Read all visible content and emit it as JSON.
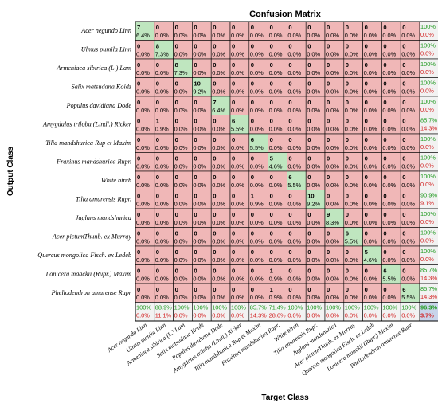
{
  "chart_data": {
    "type": "heatmap",
    "title": "Confusion Matrix",
    "xlabel": "Target Class",
    "ylabel": "Output Class",
    "classes": [
      "Acer negundo Linn",
      "Ulmus pumila Linn",
      "Armeniaca sibirica (L.) Lam",
      "Salix matsudana Koidz",
      "Populus davidiana Dode",
      "Amygdalus triloba (Lindl.) Ricker",
      "Tilia mandshurica Rup et Maxim",
      "Fraxinus mandshurica Rupr.",
      "White birch",
      "Tilia amurensis Rupr.",
      "Juglans mandshurica",
      "Acer pictumThunb. ex Murray",
      "Quercus mongolica Fisch. ex Ledeb",
      "Lonicera maackii (Rupr.) Maxim",
      "Phellodendron amurense Rupr"
    ],
    "counts": [
      [
        7,
        0,
        0,
        0,
        0,
        0,
        0,
        0,
        0,
        0,
        0,
        0,
        0,
        0,
        0
      ],
      [
        0,
        8,
        0,
        0,
        0,
        0,
        0,
        0,
        0,
        0,
        0,
        0,
        0,
        0,
        0
      ],
      [
        0,
        0,
        8,
        0,
        0,
        0,
        0,
        0,
        0,
        0,
        0,
        0,
        0,
        0,
        0
      ],
      [
        0,
        0,
        0,
        10,
        0,
        0,
        0,
        0,
        0,
        0,
        0,
        0,
        0,
        0,
        0
      ],
      [
        0,
        0,
        0,
        0,
        7,
        0,
        0,
        0,
        0,
        0,
        0,
        0,
        0,
        0,
        0
      ],
      [
        0,
        1,
        0,
        0,
        0,
        6,
        0,
        0,
        0,
        0,
        0,
        0,
        0,
        0,
        0
      ],
      [
        0,
        0,
        0,
        0,
        0,
        0,
        6,
        0,
        0,
        0,
        0,
        0,
        0,
        0,
        0
      ],
      [
        0,
        0,
        0,
        0,
        0,
        0,
        0,
        5,
        0,
        0,
        0,
        0,
        0,
        0,
        0
      ],
      [
        0,
        0,
        0,
        0,
        0,
        0,
        0,
        0,
        6,
        0,
        0,
        0,
        0,
        0,
        0
      ],
      [
        0,
        0,
        0,
        0,
        0,
        0,
        1,
        0,
        0,
        10,
        0,
        0,
        0,
        0,
        0
      ],
      [
        0,
        0,
        0,
        0,
        0,
        0,
        0,
        0,
        0,
        0,
        9,
        0,
        0,
        0,
        0
      ],
      [
        0,
        0,
        0,
        0,
        0,
        0,
        0,
        0,
        0,
        0,
        0,
        6,
        0,
        0,
        0
      ],
      [
        0,
        0,
        0,
        0,
        0,
        0,
        0,
        0,
        0,
        0,
        0,
        0,
        5,
        0,
        0
      ],
      [
        0,
        0,
        0,
        0,
        0,
        0,
        0,
        1,
        0,
        0,
        0,
        0,
        0,
        6,
        0
      ],
      [
        0,
        0,
        0,
        0,
        0,
        0,
        0,
        1,
        0,
        0,
        0,
        0,
        0,
        0,
        6
      ]
    ],
    "percents": [
      [
        "6.4%",
        "0.0%",
        "0.0%",
        "0.0%",
        "0.0%",
        "0.0%",
        "0.0%",
        "0.0%",
        "0.0%",
        "0.0%",
        "0.0%",
        "0.0%",
        "0.0%",
        "0.0%",
        "0.0%"
      ],
      [
        "0.0%",
        "7.3%",
        "0.0%",
        "0.0%",
        "0.0%",
        "0.0%",
        "0.0%",
        "0.0%",
        "0.0%",
        "0.0%",
        "0.0%",
        "0.0%",
        "0.0%",
        "0.0%",
        "0.0%"
      ],
      [
        "0.0%",
        "0.0%",
        "7.3%",
        "0.0%",
        "0.0%",
        "0.0%",
        "0.0%",
        "0.0%",
        "0.0%",
        "0.0%",
        "0.0%",
        "0.0%",
        "0.0%",
        "0.0%",
        "0.0%"
      ],
      [
        "0.0%",
        "0.0%",
        "0.0%",
        "9.2%",
        "0.0%",
        "0.0%",
        "0.0%",
        "0.0%",
        "0.0%",
        "0.0%",
        "0.0%",
        "0.0%",
        "0.0%",
        "0.0%",
        "0.0%"
      ],
      [
        "0.0%",
        "0.0%",
        "0.0%",
        "0.0%",
        "6.4%",
        "0.0%",
        "0.0%",
        "0.0%",
        "0.0%",
        "0.0%",
        "0.0%",
        "0.0%",
        "0.0%",
        "0.0%",
        "0.0%"
      ],
      [
        "0.0%",
        "0.9%",
        "0.0%",
        "0.0%",
        "0.0%",
        "5.5%",
        "0.0%",
        "0.0%",
        "0.0%",
        "0.0%",
        "0.0%",
        "0.0%",
        "0.0%",
        "0.0%",
        "0.0%"
      ],
      [
        "0.0%",
        "0.0%",
        "0.0%",
        "0.0%",
        "0.0%",
        "0.0%",
        "5.5%",
        "0.0%",
        "0.0%",
        "0.0%",
        "0.0%",
        "0.0%",
        "0.0%",
        "0.0%",
        "0.0%"
      ],
      [
        "0.0%",
        "0.0%",
        "0.0%",
        "0.0%",
        "0.0%",
        "0.0%",
        "0.0%",
        "4.6%",
        "0.0%",
        "0.0%",
        "0.0%",
        "0.0%",
        "0.0%",
        "0.0%",
        "0.0%"
      ],
      [
        "0.0%",
        "0.0%",
        "0.0%",
        "0.0%",
        "0.0%",
        "0.0%",
        "0.0%",
        "0.0%",
        "5.5%",
        "0.0%",
        "0.0%",
        "0.0%",
        "0.0%",
        "0.0%",
        "0.0%"
      ],
      [
        "0.0%",
        "0.0%",
        "0.0%",
        "0.0%",
        "0.0%",
        "0.0%",
        "0.9%",
        "0.0%",
        "0.0%",
        "9.2%",
        "0.0%",
        "0.0%",
        "0.0%",
        "0.0%",
        "0.0%"
      ],
      [
        "0.0%",
        "0.0%",
        "0.0%",
        "0.0%",
        "0.0%",
        "0.0%",
        "0.0%",
        "0.0%",
        "0.0%",
        "0.0%",
        "8.3%",
        "0.0%",
        "0.0%",
        "0.0%",
        "0.0%"
      ],
      [
        "0.0%",
        "0.0%",
        "0.0%",
        "0.0%",
        "0.0%",
        "0.0%",
        "0.0%",
        "0.0%",
        "0.0%",
        "0.0%",
        "0.0%",
        "5.5%",
        "0.0%",
        "0.0%",
        "0.0%"
      ],
      [
        "0.0%",
        "0.0%",
        "0.0%",
        "0.0%",
        "0.0%",
        "0.0%",
        "0.0%",
        "0.0%",
        "0.0%",
        "0.0%",
        "0.0%",
        "0.0%",
        "4.6%",
        "0.0%",
        "0.0%"
      ],
      [
        "0.0%",
        "0.0%",
        "0.0%",
        "0.0%",
        "0.0%",
        "0.0%",
        "0.0%",
        "0.9%",
        "0.0%",
        "0.0%",
        "0.0%",
        "0.0%",
        "0.0%",
        "5.5%",
        "0.0%"
      ],
      [
        "0.0%",
        "0.0%",
        "0.0%",
        "0.0%",
        "0.0%",
        "0.0%",
        "0.0%",
        "0.9%",
        "0.0%",
        "0.0%",
        "0.0%",
        "0.0%",
        "0.0%",
        "0.0%",
        "5.5%"
      ]
    ],
    "row_summary": [
      [
        "100%",
        "0.0%"
      ],
      [
        "100%",
        "0.0%"
      ],
      [
        "100%",
        "0.0%"
      ],
      [
        "100%",
        "0.0%"
      ],
      [
        "100%",
        "0.0%"
      ],
      [
        "85.7%",
        "14.3%"
      ],
      [
        "100%",
        "0.0%"
      ],
      [
        "100%",
        "0.0%"
      ],
      [
        "100%",
        "0.0%"
      ],
      [
        "90.9%",
        "9.1%"
      ],
      [
        "100%",
        "0.0%"
      ],
      [
        "100%",
        "0.0%"
      ],
      [
        "100%",
        "0.0%"
      ],
      [
        "85.7%",
        "14.3%"
      ],
      [
        "85.7%",
        "14.3%"
      ]
    ],
    "col_summary": [
      [
        "100%",
        "0.0%"
      ],
      [
        "88.9%",
        "11.1%"
      ],
      [
        "100%",
        "0.0%"
      ],
      [
        "100%",
        "0.0%"
      ],
      [
        "100%",
        "0.0%"
      ],
      [
        "100%",
        "0.0%"
      ],
      [
        "85.7%",
        "14.3%"
      ],
      [
        "71.4%",
        "28.6%"
      ],
      [
        "100%",
        "0.0%"
      ],
      [
        "100%",
        "0.0%"
      ],
      [
        "100%",
        "0.0%"
      ],
      [
        "100%",
        "0.0%"
      ],
      [
        "100%",
        "0.0%"
      ],
      [
        "100%",
        "0.0%"
      ],
      [
        "100%",
        "0.0%"
      ]
    ],
    "overall": [
      "96.3%",
      "3.7%"
    ],
    "colors": {
      "correct": "#bfe6bf",
      "incorrect": "#f0b7b7",
      "summary": "#f2f2f2",
      "overall": "#c8d4ea",
      "grid": "#000000",
      "accuracy_text": "#1e9a1e",
      "error_text": "#d21e1e"
    }
  }
}
